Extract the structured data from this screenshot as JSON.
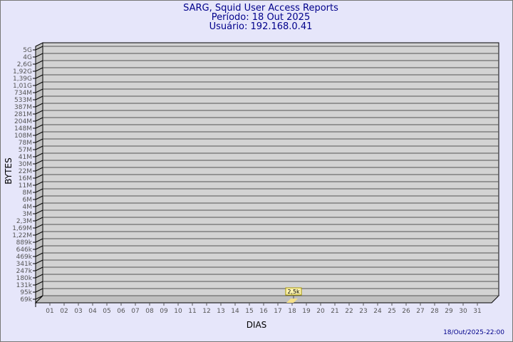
{
  "chart_data": {
    "type": "bar",
    "title": [
      "SARG, Squid User Access Reports",
      "Período: 18 Out 2025",
      "Usuário: 192.168.0.41"
    ],
    "xlabel": "DIAS",
    "ylabel": "BYTES",
    "y_tick_labels": [
      "5G",
      "4G",
      "2,6G",
      "1,92G",
      "1,39G",
      "1,01G",
      "734M",
      "533M",
      "387M",
      "281M",
      "204M",
      "148M",
      "108M",
      "78M",
      "57M",
      "41M",
      "30M",
      "22M",
      "16M",
      "11M",
      "8M",
      "6M",
      "4M",
      "3M",
      "2,3M",
      "1,69M",
      "1,22M",
      "889k",
      "646k",
      "469k",
      "341k",
      "247k",
      "180k",
      "131k",
      "95k",
      "69k"
    ],
    "categories": [
      "01",
      "02",
      "03",
      "04",
      "05",
      "06",
      "07",
      "08",
      "09",
      "10",
      "11",
      "12",
      "13",
      "14",
      "15",
      "16",
      "17",
      "18",
      "19",
      "20",
      "21",
      "22",
      "23",
      "24",
      "25",
      "26",
      "27",
      "28",
      "29",
      "30",
      "31"
    ],
    "values": [
      null,
      null,
      null,
      null,
      null,
      null,
      null,
      null,
      null,
      null,
      null,
      null,
      null,
      null,
      null,
      null,
      null,
      2500,
      null,
      null,
      null,
      null,
      null,
      null,
      null,
      null,
      null,
      null,
      null,
      null,
      null
    ],
    "data_labels": {
      "18": "2,5k"
    },
    "grid": true,
    "colors": {
      "background": "#e6e6fa",
      "plot": "#d3d3d3",
      "bar": "#f5e08a",
      "title": "#00008b"
    }
  },
  "footer": {
    "timestamp": "18/Out/2025-22:00"
  }
}
